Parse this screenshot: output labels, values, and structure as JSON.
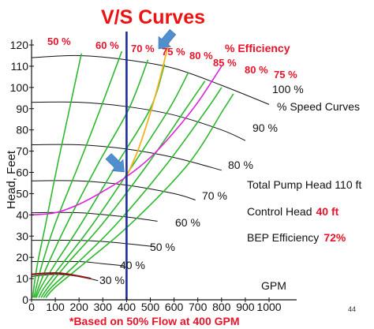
{
  "chart_data": {
    "type": "line",
    "title": "V/S Curves",
    "ylabel": "Head, Feet",
    "xlabel": "GPM",
    "xlim": [
      0,
      1000
    ],
    "ylim": [
      0,
      120
    ],
    "x_ticks": [
      0,
      100,
      200,
      300,
      400,
      500,
      600,
      700,
      800,
      900,
      1000
    ],
    "y_ticks": [
      0,
      10,
      20,
      30,
      40,
      50,
      60,
      70,
      80,
      90,
      100,
      110,
      120
    ],
    "speed_curves": [
      {
        "name": "100 %",
        "values": [
          [
            0,
            114
          ],
          [
            200,
            115
          ],
          [
            400,
            113
          ],
          [
            600,
            109
          ],
          [
            800,
            101
          ],
          [
            1000,
            92
          ]
        ]
      },
      {
        "name": "90 %",
        "values": [
          [
            0,
            93
          ],
          [
            200,
            93
          ],
          [
            400,
            91
          ],
          [
            600,
            87
          ],
          [
            800,
            80
          ],
          [
            900,
            75
          ]
        ]
      },
      {
        "name": "80 %",
        "values": [
          [
            0,
            73
          ],
          [
            200,
            73
          ],
          [
            400,
            71
          ],
          [
            600,
            67
          ],
          [
            800,
            61
          ]
        ]
      },
      {
        "name": "70 %",
        "values": [
          [
            0,
            56
          ],
          [
            200,
            56
          ],
          [
            400,
            54
          ],
          [
            600,
            50
          ],
          [
            690,
            47
          ]
        ]
      },
      {
        "name": "60 %",
        "values": [
          [
            0,
            41
          ],
          [
            200,
            41
          ],
          [
            400,
            39
          ],
          [
            530,
            37
          ]
        ]
      },
      {
        "name": "50 %",
        "values": [
          [
            0,
            28
          ],
          [
            200,
            28
          ],
          [
            350,
            27
          ],
          [
            520,
            25
          ]
        ]
      },
      {
        "name": "40 %",
        "values": [
          [
            0,
            18
          ],
          [
            200,
            18
          ],
          [
            300,
            17
          ],
          [
            390,
            16
          ]
        ]
      },
      {
        "name": "30 %",
        "values": [
          [
            0,
            11
          ],
          [
            100,
            12
          ],
          [
            200,
            11
          ],
          [
            280,
            9
          ]
        ]
      }
    ],
    "efficiency_curves": [
      {
        "name": "50 %",
        "values": [
          [
            5,
            1
          ],
          [
            10,
            6
          ],
          [
            25,
            17
          ],
          [
            60,
            36
          ],
          [
            110,
            64
          ],
          [
            160,
            90
          ],
          [
            210,
            116
          ]
        ]
      },
      {
        "name": "60 %",
        "values": [
          [
            10,
            1
          ],
          [
            20,
            6
          ],
          [
            45,
            17
          ],
          [
            100,
            36
          ],
          [
            200,
            64
          ],
          [
            290,
            90
          ],
          [
            380,
            117
          ]
        ]
      },
      {
        "name": "70 %",
        "values": [
          [
            15,
            1
          ],
          [
            30,
            6
          ],
          [
            70,
            17
          ],
          [
            150,
            36
          ],
          [
            280,
            64
          ],
          [
            410,
            90
          ],
          [
            490,
            113
          ]
        ]
      },
      {
        "name": "75 %",
        "values": [
          [
            20,
            1
          ],
          [
            40,
            6
          ],
          [
            100,
            17
          ],
          [
            210,
            36
          ],
          [
            360,
            64
          ],
          [
            500,
            90
          ],
          [
            560,
            111
          ]
        ]
      },
      {
        "name": "80 %",
        "values": [
          [
            30,
            1
          ],
          [
            55,
            6
          ],
          [
            130,
            17
          ],
          [
            260,
            36
          ],
          [
            430,
            64
          ],
          [
            580,
            90
          ],
          [
            660,
            107
          ]
        ]
      },
      {
        "name": "85 %",
        "values": [
          [
            40,
            1
          ],
          [
            70,
            6
          ],
          [
            150,
            17
          ],
          [
            300,
            36
          ],
          [
            490,
            64
          ],
          [
            650,
            90
          ],
          [
            730,
            103
          ]
        ]
      },
      {
        "name": "80 %",
        "values": [
          [
            50,
            1
          ],
          [
            85,
            6
          ],
          [
            190,
            17
          ],
          [
            360,
            36
          ],
          [
            570,
            64
          ],
          [
            740,
            90
          ],
          [
            800,
            100
          ]
        ]
      },
      {
        "name": "75 %",
        "values": [
          [
            60,
            1
          ],
          [
            100,
            6
          ],
          [
            220,
            17
          ],
          [
            420,
            36
          ],
          [
            660,
            64
          ],
          [
            810,
            90
          ],
          [
            850,
            97
          ]
        ]
      }
    ],
    "system_curve": {
      "values": [
        [
          0,
          40
        ],
        [
          100,
          41
        ],
        [
          200,
          45
        ],
        [
          300,
          51
        ],
        [
          400,
          58
        ],
        [
          500,
          67
        ],
        [
          600,
          79
        ],
        [
          700,
          93
        ],
        [
          800,
          110
        ]
      ]
    },
    "bep_curve": {
      "values": [
        [
          400,
          58
        ],
        [
          450,
          71
        ],
        [
          500,
          88
        ],
        [
          540,
          104
        ],
        [
          580,
          122
        ]
      ]
    },
    "operating_point": {
      "x": 400,
      "y": 58
    },
    "flow_marker_x": 400,
    "legend_labels": {
      "efficiency": "% Efficiency",
      "speed": "% Speed Curves"
    }
  },
  "annotations": {
    "total_head_label": "Total Pump Head 110 ft",
    "control_head_label": "Control Head",
    "control_head_value": "40 ft",
    "bep_label": "BEP Efficiency",
    "bep_value": "72%",
    "footnote": "*Based on 50% Flow at 400 GPM",
    "page_number": "44"
  },
  "colors": {
    "title": "#ee1111",
    "efficiency": "#e8132a",
    "green_curves": "#2db82d",
    "speed_curves": "#111111",
    "system_curve": "#dd22dd",
    "bep_curve": "#f2b21a",
    "flow_line": "#1c2e9e",
    "axes": "#111111",
    "arrow": "#4f8fd0",
    "low_curve": "#8b1a1a"
  }
}
